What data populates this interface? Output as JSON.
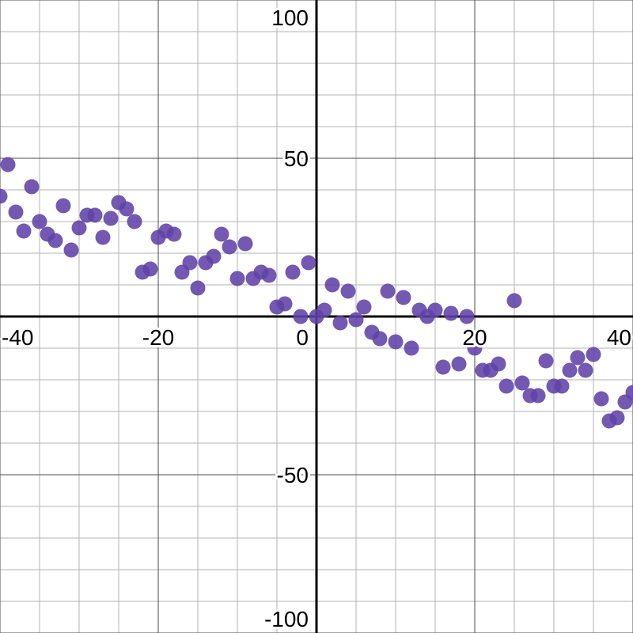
{
  "chart_data": {
    "type": "scatter",
    "title": "",
    "xlabel": "",
    "ylabel": "",
    "xlim": [
      -40,
      40
    ],
    "ylim": [
      -100,
      100
    ],
    "grid": true,
    "minor_x_step": 5,
    "major_x_step": 20,
    "minor_y_step": 10,
    "major_y_step": 50,
    "x_ticks": [
      {
        "value": -40,
        "label": "-40"
      },
      {
        "value": -20,
        "label": "-20"
      },
      {
        "value": 0,
        "label": "0"
      },
      {
        "value": 20,
        "label": "20"
      },
      {
        "value": 40,
        "label": "40"
      }
    ],
    "y_ticks": [
      {
        "value": 100,
        "label": "100"
      },
      {
        "value": 50,
        "label": "50"
      },
      {
        "value": -50,
        "label": "-50"
      },
      {
        "value": -100,
        "label": "-100"
      }
    ],
    "point_color": "#6042a6",
    "series": [
      {
        "points": [
          [
            -40,
            38
          ],
          [
            -39,
            48
          ],
          [
            -38,
            33
          ],
          [
            -37,
            27
          ],
          [
            -36,
            41
          ],
          [
            -35,
            30
          ],
          [
            -34,
            26
          ],
          [
            -33,
            24
          ],
          [
            -32,
            35
          ],
          [
            -31,
            21
          ],
          [
            -30,
            28
          ],
          [
            -29,
            32
          ],
          [
            -28,
            32
          ],
          [
            -27,
            25
          ],
          [
            -26,
            31
          ],
          [
            -25,
            36
          ],
          [
            -24,
            34
          ],
          [
            -23,
            30
          ],
          [
            -22,
            14
          ],
          [
            -21,
            15
          ],
          [
            -20,
            25
          ],
          [
            -19,
            27
          ],
          [
            -18,
            26
          ],
          [
            -17,
            14
          ],
          [
            -16,
            17
          ],
          [
            -15,
            9
          ],
          [
            -14,
            17
          ],
          [
            -13,
            19
          ],
          [
            -12,
            26
          ],
          [
            -11,
            22
          ],
          [
            -10,
            12
          ],
          [
            -9,
            23
          ],
          [
            -8,
            12
          ],
          [
            -7,
            14
          ],
          [
            -6,
            13
          ],
          [
            -5,
            3
          ],
          [
            -4,
            4
          ],
          [
            -3,
            14
          ],
          [
            -2,
            0
          ],
          [
            -1,
            17
          ],
          [
            0,
            0
          ],
          [
            1,
            2
          ],
          [
            2,
            10
          ],
          [
            3,
            -2
          ],
          [
            4,
            8
          ],
          [
            5,
            -1
          ],
          [
            6,
            3
          ],
          [
            7,
            -5
          ],
          [
            8,
            -7
          ],
          [
            9,
            8
          ],
          [
            10,
            -8
          ],
          [
            11,
            6
          ],
          [
            12,
            -10
          ],
          [
            13,
            2
          ],
          [
            14,
            0
          ],
          [
            15,
            2
          ],
          [
            16,
            -16
          ],
          [
            17,
            1
          ],
          [
            18,
            -15
          ],
          [
            19,
            0
          ],
          [
            20,
            -10
          ],
          [
            21,
            -17
          ],
          [
            22,
            -17
          ],
          [
            23,
            -15
          ],
          [
            24,
            -22
          ],
          [
            25,
            5
          ],
          [
            26,
            -21
          ],
          [
            27,
            -25
          ],
          [
            28,
            -25
          ],
          [
            29,
            -14
          ],
          [
            30,
            -22
          ],
          [
            31,
            -22
          ],
          [
            32,
            -17
          ],
          [
            33,
            -13
          ],
          [
            34,
            -17
          ],
          [
            35,
            -12
          ],
          [
            36,
            -26
          ],
          [
            37,
            -33
          ],
          [
            38,
            -32
          ],
          [
            39,
            -27
          ],
          [
            40,
            -24
          ],
          [
            41,
            -38
          ]
        ]
      }
    ]
  }
}
